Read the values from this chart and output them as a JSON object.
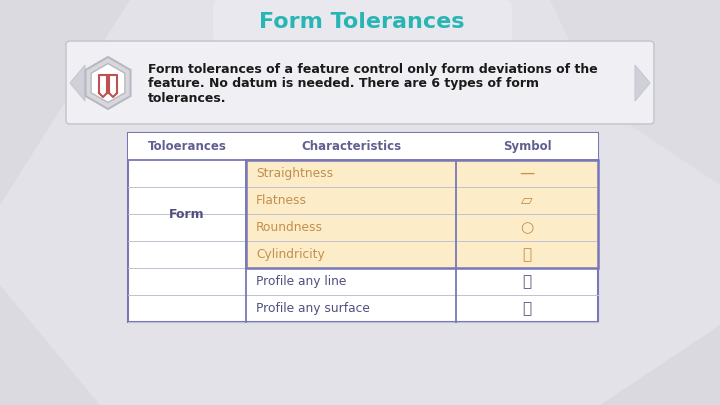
{
  "title": "Form Tolerances",
  "title_color": "#2ab5b5",
  "background_color": "#e2e2e8",
  "table_header": [
    "Toloerances",
    "Characteristics",
    "Symbol"
  ],
  "form_row_indices": [
    0,
    1,
    2,
    3
  ],
  "highlight_color": "#fdecc8",
  "table_border_color": "#7878b8",
  "header_text_color": "#606090",
  "highlight_char_color": "#c09050",
  "normal_char_color": "#505080",
  "normal_sym_color": "#505080",
  "highlight_sym_color": "#c09050",
  "form_label_color": "#505080",
  "box_bg_color": "#f0f0f4",
  "box_border_color": "#c8c8d0",
  "hex_fill": "#d8d8dc",
  "book_color": "#c05050",
  "desc_color": "#1a1a1a",
  "title_box_color": "#e0e0e8",
  "row_data": [
    [
      "",
      "Straightness",
      "—"
    ],
    [
      "",
      "Flatness",
      "▱"
    ],
    [
      "",
      "Roundness",
      "○"
    ],
    [
      "Form",
      "Cylindricity",
      "⌭"
    ],
    [
      "",
      "Profile any line",
      "⌒"
    ],
    [
      "",
      "Profile any surface",
      "⌓"
    ]
  ],
  "desc_lines": [
    "Form tolerances of a feature control only form deviations of the",
    "feature. No datum is needed. There are 6 types of form",
    "tolerances."
  ]
}
